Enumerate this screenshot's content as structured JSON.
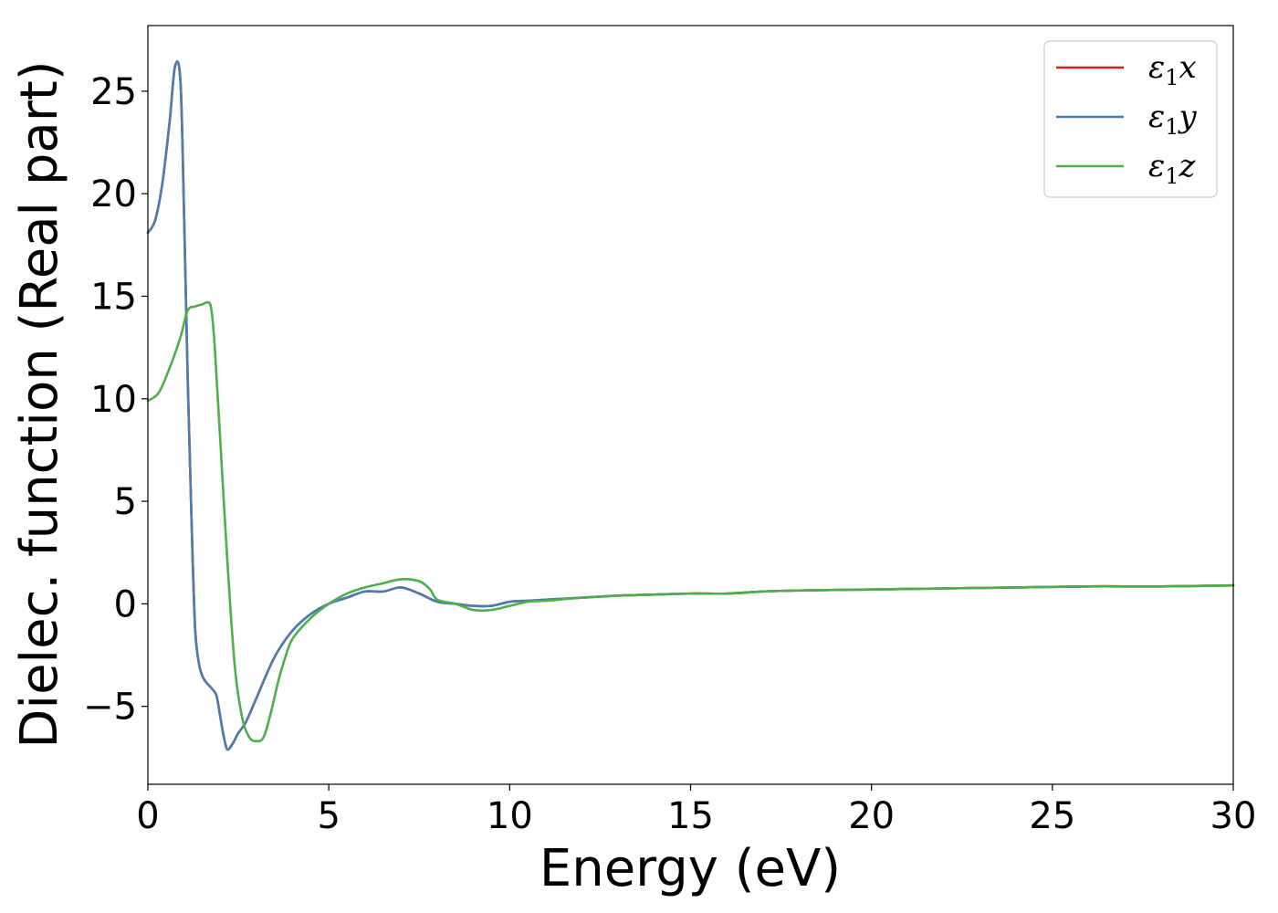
{
  "chart_data": {
    "type": "line",
    "xlabel": "Energy (eV)",
    "ylabel": "Dielec. function (Real part)",
    "xlim": [
      0,
      30
    ],
    "ylim": [
      -8.8,
      28.2
    ],
    "xticks": [
      0,
      5,
      10,
      15,
      20,
      25,
      30
    ],
    "yticks": [
      -5,
      0,
      5,
      10,
      15,
      20,
      25
    ],
    "xtick_labels": [
      "0",
      "5",
      "10",
      "15",
      "20",
      "25",
      "30"
    ],
    "ytick_labels": [
      "−5",
      "0",
      "5",
      "10",
      "15",
      "20",
      "25"
    ],
    "grid": false,
    "legend_position": "top-right",
    "series": [
      {
        "name": "ε1x",
        "legend": {
          "symbol": "ε",
          "sub": "1",
          "var": "x"
        },
        "color": "#e41a1c",
        "x": [
          0,
          0.2,
          0.4,
          0.6,
          0.75,
          0.9,
          1.0,
          1.1,
          1.2,
          1.3,
          1.4,
          1.5,
          1.6,
          1.7,
          1.8,
          1.9,
          2.0,
          2.1,
          2.2,
          2.35,
          2.5,
          2.7,
          3.0,
          3.5,
          4.0,
          4.5,
          5.0,
          5.5,
          6.0,
          6.5,
          7.0,
          7.5,
          8.0,
          8.5,
          9.0,
          9.5,
          10.0,
          10.5,
          11.0,
          12.0,
          13.0,
          14.0,
          15.0,
          16.0,
          17.0,
          18.0,
          20.0,
          22.0,
          24.0,
          26.0,
          28.0,
          30.0
        ],
        "y": [
          18.1,
          18.7,
          20.5,
          23.5,
          26.2,
          25.5,
          19.0,
          11.0,
          4.5,
          -1.0,
          -2.8,
          -3.5,
          -3.8,
          -4.0,
          -4.2,
          -4.5,
          -5.5,
          -6.5,
          -7.1,
          -6.8,
          -6.3,
          -5.8,
          -4.6,
          -2.6,
          -1.3,
          -0.5,
          0.0,
          0.3,
          0.6,
          0.6,
          0.8,
          0.5,
          0.1,
          0.0,
          -0.1,
          -0.1,
          0.1,
          0.15,
          0.2,
          0.3,
          0.4,
          0.45,
          0.5,
          0.5,
          0.6,
          0.65,
          0.7,
          0.75,
          0.8,
          0.85,
          0.85,
          0.9
        ]
      },
      {
        "name": "ε1y",
        "legend": {
          "symbol": "ε",
          "sub": "1",
          "var": "y"
        },
        "color": "#4a7eb3",
        "x": [
          0,
          0.2,
          0.4,
          0.6,
          0.75,
          0.9,
          1.0,
          1.1,
          1.2,
          1.3,
          1.4,
          1.5,
          1.6,
          1.7,
          1.8,
          1.9,
          2.0,
          2.1,
          2.2,
          2.35,
          2.5,
          2.7,
          3.0,
          3.5,
          4.0,
          4.5,
          5.0,
          5.5,
          6.0,
          6.5,
          7.0,
          7.5,
          8.0,
          8.5,
          9.0,
          9.5,
          10.0,
          10.5,
          11.0,
          12.0,
          13.0,
          14.0,
          15.0,
          16.0,
          17.0,
          18.0,
          20.0,
          22.0,
          24.0,
          26.0,
          28.0,
          30.0
        ],
        "y": [
          18.1,
          18.7,
          20.5,
          23.5,
          26.2,
          25.5,
          19.0,
          11.0,
          4.5,
          -1.0,
          -2.8,
          -3.5,
          -3.8,
          -4.0,
          -4.2,
          -4.5,
          -5.5,
          -6.5,
          -7.1,
          -6.8,
          -6.3,
          -5.8,
          -4.6,
          -2.6,
          -1.3,
          -0.5,
          0.0,
          0.3,
          0.6,
          0.6,
          0.8,
          0.5,
          0.1,
          0.0,
          -0.1,
          -0.1,
          0.1,
          0.15,
          0.2,
          0.3,
          0.4,
          0.45,
          0.5,
          0.5,
          0.6,
          0.65,
          0.7,
          0.75,
          0.8,
          0.85,
          0.85,
          0.9
        ]
      },
      {
        "name": "ε1z",
        "legend": {
          "symbol": "ε",
          "sub": "1",
          "var": "z"
        },
        "color": "#4daf4a",
        "x": [
          0,
          0.3,
          0.6,
          0.9,
          1.1,
          1.3,
          1.5,
          1.65,
          1.75,
          1.85,
          2.0,
          2.2,
          2.4,
          2.6,
          2.8,
          3.0,
          3.2,
          3.4,
          3.6,
          3.8,
          4.0,
          4.5,
          5.0,
          5.5,
          6.0,
          6.5,
          7.0,
          7.5,
          7.8,
          8.0,
          8.5,
          9.0,
          9.5,
          10.0,
          10.5,
          11.0,
          12.0,
          13.0,
          14.0,
          15.0,
          16.0,
          17.0,
          18.0,
          20.0,
          22.0,
          24.0,
          26.0,
          28.0,
          30.0
        ],
        "y": [
          9.9,
          10.3,
          11.5,
          13.0,
          14.3,
          14.5,
          14.6,
          14.7,
          14.4,
          12.5,
          8.0,
          2.0,
          -3.0,
          -5.5,
          -6.5,
          -6.7,
          -6.5,
          -5.3,
          -3.8,
          -2.6,
          -1.7,
          -0.7,
          0.0,
          0.5,
          0.8,
          1.0,
          1.2,
          1.1,
          0.7,
          0.2,
          0.0,
          -0.3,
          -0.3,
          -0.1,
          0.1,
          0.15,
          0.3,
          0.4,
          0.45,
          0.5,
          0.5,
          0.6,
          0.65,
          0.7,
          0.75,
          0.8,
          0.85,
          0.85,
          0.9
        ]
      }
    ]
  }
}
